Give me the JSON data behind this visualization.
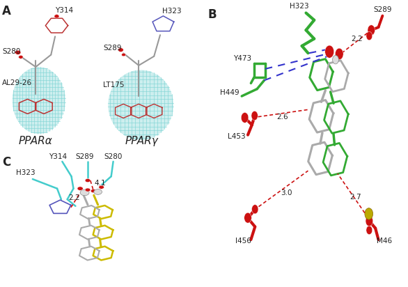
{
  "bg_color": "#FFFFFF",
  "label_fontsize": 12,
  "residue_fontsize": 7.5,
  "dist_fontsize": 7.5,
  "panel_A": {
    "label": "A",
    "ppar_alpha": "PPARα",
    "ppar_gamma": "PPARγ",
    "mesh_color": "#7DD4D4",
    "backbone_color": "#999999",
    "oxygen_color": "#CC1111",
    "nitrogen_color": "#5555BB",
    "ring_color": "#BB3333"
  },
  "panel_B": {
    "label": "B",
    "green": "#33AA33",
    "gray": "#AAAAAA",
    "red": "#CC1111",
    "blue_dash": "#3333CC",
    "red_dash": "#CC1111",
    "yellow": "#BBAA00"
  },
  "panel_C": {
    "label": "C",
    "cyan": "#44CCCC",
    "yellow": "#CCBB00",
    "gray": "#AAAAAA",
    "red": "#CC1111",
    "nitrogen_color": "#5555BB"
  }
}
